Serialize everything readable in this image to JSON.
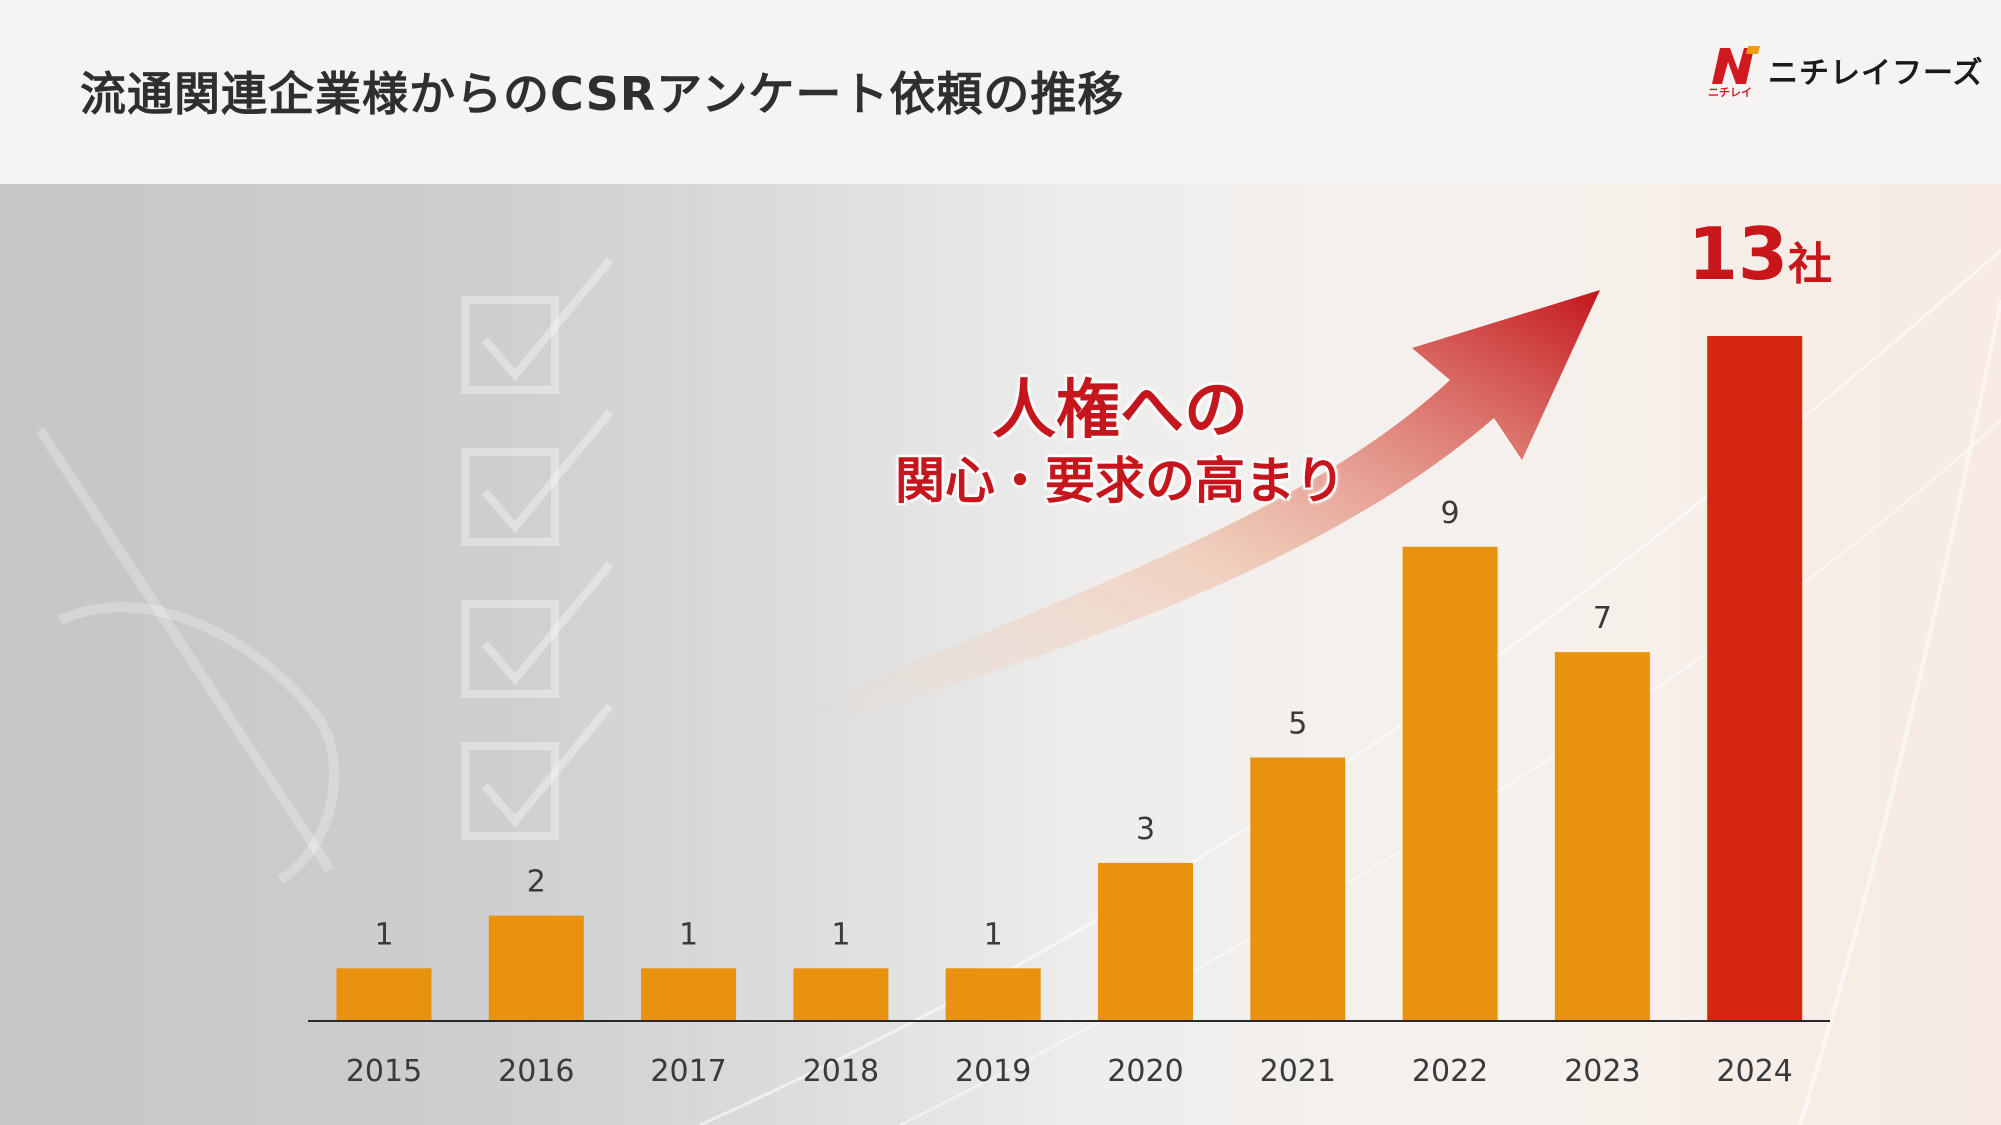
{
  "header": {
    "title": "流通関連企業様からのCSRアンケート依頼の推移",
    "logo_text": "ニチレイフーズ",
    "logo_sub": "ニチレイ"
  },
  "callout": {
    "line1": "人権への",
    "line2": "関心・要求の高まり"
  },
  "highlight": {
    "value": "13",
    "unit": "社"
  },
  "colors": {
    "bar": "#e8920f",
    "bar_highlight": "#d42611",
    "accent_red": "#c4161c"
  },
  "chart_data": {
    "type": "bar",
    "categories": [
      "2015",
      "2016",
      "2017",
      "2018",
      "2019",
      "2020",
      "2021",
      "2022",
      "2023",
      "2024"
    ],
    "values": [
      1,
      2,
      1,
      1,
      1,
      3,
      5,
      9,
      7,
      13
    ],
    "highlight_index": 9,
    "title": "",
    "xlabel": "",
    "ylabel": "",
    "ylim": [
      0,
      13
    ],
    "grid": false,
    "legend": "none"
  }
}
